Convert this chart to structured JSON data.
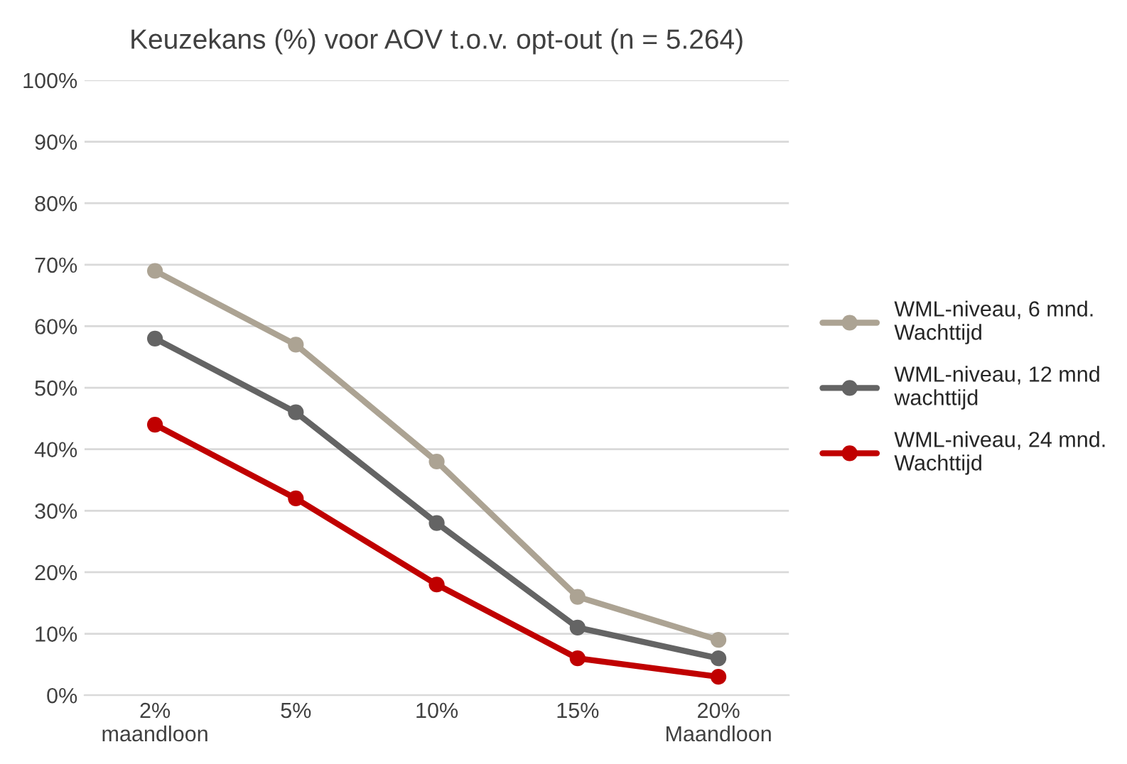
{
  "chart_data": {
    "type": "line",
    "title": "Keuzekans (%) voor AOV t.o.v. opt-out (n = 5.264)",
    "categories": [
      "2%\nmaandloon",
      "5%",
      "10%",
      "15%",
      "20%\nMaandloon"
    ],
    "series": [
      {
        "name": "WML-niveau, 6 mnd.\nWachttijd",
        "color": "#aca393",
        "values": [
          69,
          57,
          38,
          16,
          9
        ]
      },
      {
        "name": "WML-niveau, 12 mnd\nwachttijd",
        "color": "#646464",
        "values": [
          58,
          46,
          28,
          11,
          6
        ]
      },
      {
        "name": "WML-niveau, 24 mnd.\nWachttijd",
        "color": "#c00000",
        "values": [
          44,
          32,
          18,
          6,
          3
        ]
      }
    ],
    "ylim": [
      0,
      100
    ],
    "yticks": [
      {
        "value": 0,
        "label": "0%"
      },
      {
        "value": 10,
        "label": "10%"
      },
      {
        "value": 20,
        "label": "20%"
      },
      {
        "value": 30,
        "label": "30%"
      },
      {
        "value": 40,
        "label": "40%"
      },
      {
        "value": 50,
        "label": "50%"
      },
      {
        "value": 60,
        "label": "60%"
      },
      {
        "value": 70,
        "label": "70%"
      },
      {
        "value": 80,
        "label": "80%"
      },
      {
        "value": 90,
        "label": "90%"
      },
      {
        "value": 100,
        "label": "100%"
      }
    ],
    "grid": "y",
    "legend": "right",
    "marker": "circle",
    "line_style": "solid"
  }
}
